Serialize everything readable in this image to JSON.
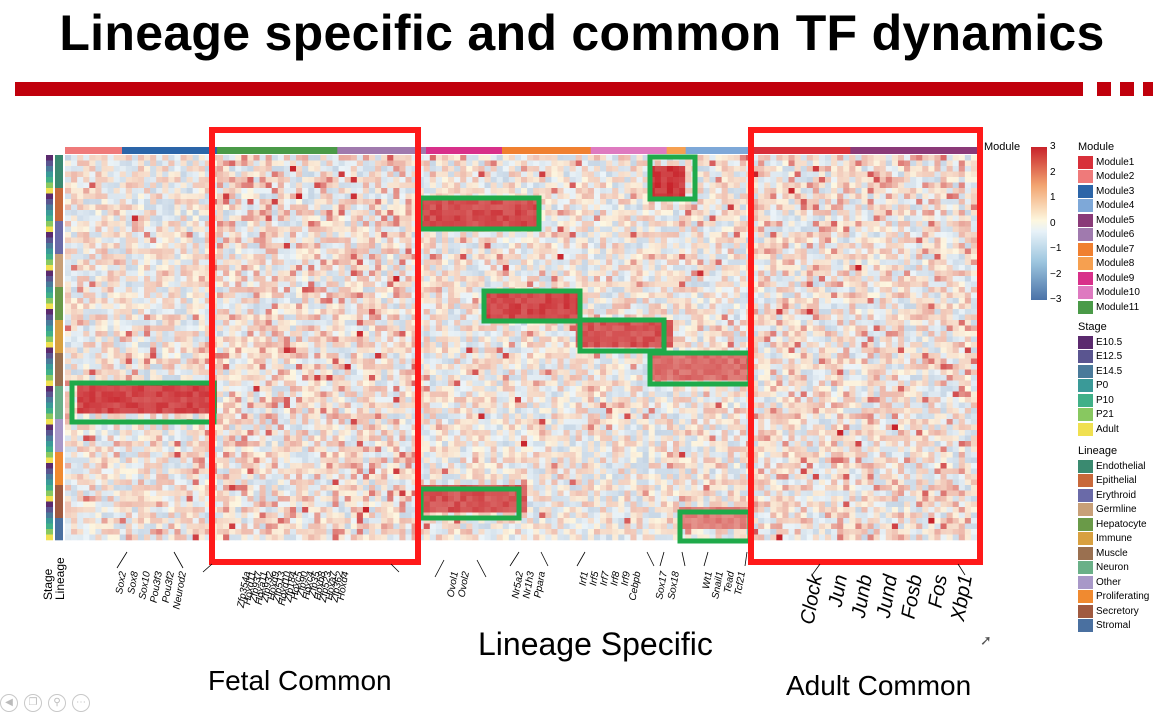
{
  "title": "Lineage specific and common TF dynamics",
  "colors": {
    "accent_red": "#c0000c",
    "box_red": "#ff1a1a",
    "box_green": "#1faa4a"
  },
  "section_labels": {
    "fetal": "Fetal Common",
    "lineage": "Lineage Specific",
    "adult": "Adult Common"
  },
  "chart_data": {
    "type": "heatmap",
    "title": "Lineage specific and common TF dynamics",
    "color_scale": {
      "min": -3,
      "max": 3,
      "ticks": [
        "3",
        "2",
        "1",
        "0",
        "−1",
        "−2",
        "−3"
      ]
    },
    "column_annotation_label": "Module",
    "row_annotation_labels": [
      "Stage",
      "Lineage"
    ],
    "module_bar": [
      {
        "module": "Module2",
        "color": "#ef7a7a",
        "span": 0.09
      },
      {
        "module": "Module3",
        "color": "#2c65a8",
        "span": 0.15
      },
      {
        "module": "Module11",
        "color": "#4a9a48",
        "span": 0.19
      },
      {
        "module": "Module6",
        "color": "#a07aae",
        "span": 0.14
      },
      {
        "module": "Module9",
        "color": "#d8308a",
        "span": 0.12
      },
      {
        "module": "Module7",
        "color": "#f08030",
        "span": 0.14
      },
      {
        "module": "Module10",
        "color": "#de7ac0",
        "span": 0.12
      },
      {
        "module": "Module8",
        "color": "#f6a050",
        "span": 0.03
      },
      {
        "module": "Module4",
        "color": "#7ea8d8",
        "span": 0.1
      },
      {
        "module": "Module1",
        "color": "#d8303a",
        "span": 0.16
      },
      {
        "module": "Module5",
        "color": "#8a3a78",
        "span": 0.2
      }
    ],
    "gene_labels": {
      "lineage_group_1": [
        "Sox2",
        "Sox8",
        "Sox10",
        "Pou3f3",
        "Pou3f2",
        "Neurod2"
      ],
      "fetal_common": [
        "Zfp354a",
        "Hoxd11",
        "Zfp937",
        "Hoxa11",
        "Zfp932",
        "Hoxd9",
        "Zfp513",
        "Hoxd10",
        "Zfp184",
        "Hoxc5",
        "Zfp90",
        "Hoxc4",
        "Zfp35",
        "Hoxb8",
        "Zfp523",
        "Hoxa7",
        "Zfp362",
        "Hoxd4"
      ],
      "lineage_group_2": [
        "Ovol1",
        "Ovol2"
      ],
      "lineage_group_3": [
        "Nr5a2",
        "Nr1h3",
        "Ppara"
      ],
      "lineage_group_4": [
        "Irf1",
        "Irf5",
        "Irf7",
        "Irf8",
        "Irf9",
        "Cebpb"
      ],
      "lineage_group_5": [
        "Sox17",
        "Sox18"
      ],
      "lineage_group_6": [
        "Wt1",
        "Snail1",
        "Tead",
        "Tcf21"
      ],
      "adult_common": [
        "Clock",
        "Jun",
        "Junb",
        "Jund",
        "Fosb",
        "Fos",
        "Xbp1"
      ]
    },
    "legend": {
      "module": {
        "title": "Module",
        "items": [
          {
            "label": "Module1",
            "color": "#d8303a"
          },
          {
            "label": "Module2",
            "color": "#ef7a7a"
          },
          {
            "label": "Module3",
            "color": "#2c65a8"
          },
          {
            "label": "Module4",
            "color": "#7ea8d8"
          },
          {
            "label": "Module5",
            "color": "#8a3a78"
          },
          {
            "label": "Module6",
            "color": "#a07aae"
          },
          {
            "label": "Module7",
            "color": "#f08030"
          },
          {
            "label": "Module8",
            "color": "#f6a050"
          },
          {
            "label": "Module9",
            "color": "#d8308a"
          },
          {
            "label": "Module10",
            "color": "#de7ac0"
          },
          {
            "label": "Module11",
            "color": "#4a9a48"
          }
        ]
      },
      "stage": {
        "title": "Stage",
        "items": [
          {
            "label": "E10.5",
            "color": "#5b2a6e"
          },
          {
            "label": "E12.5",
            "color": "#5a5590"
          },
          {
            "label": "E14.5",
            "color": "#4a7a9a"
          },
          {
            "label": "P0",
            "color": "#3a9a98"
          },
          {
            "label": "P10",
            "color": "#40b088"
          },
          {
            "label": "P21",
            "color": "#88c860"
          },
          {
            "label": "Adult",
            "color": "#f0e050"
          }
        ]
      },
      "lineage": {
        "title": "Lineage",
        "items": [
          {
            "label": "Endothelial",
            "color": "#3a8a70"
          },
          {
            "label": "Epithelial",
            "color": "#c8683a"
          },
          {
            "label": "Erythroid",
            "color": "#6a6aa8"
          },
          {
            "label": "Germline",
            "color": "#c8a078"
          },
          {
            "label": "Hepatocyte",
            "color": "#6a9a48"
          },
          {
            "label": "Immune",
            "color": "#d8a040"
          },
          {
            "label": "Muscle",
            "color": "#9a7050"
          },
          {
            "label": "Neuron",
            "color": "#6ab088"
          },
          {
            "label": "Other",
            "color": "#a898c8"
          },
          {
            "label": "Proliferating",
            "color": "#f08a30"
          },
          {
            "label": "Secretory",
            "color": "#a05a40"
          },
          {
            "label": "Stromal",
            "color": "#4a70a0"
          }
        ]
      }
    }
  }
}
